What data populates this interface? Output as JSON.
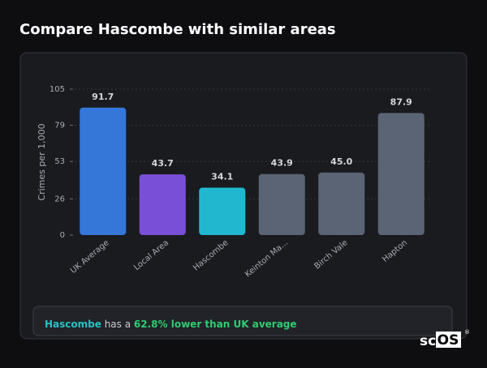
{
  "title": "Compare Hascombe with similar areas",
  "chart_data": {
    "type": "bar",
    "categories": [
      "UK Average",
      "Local Area",
      "Hascombe",
      "Keinton Ma...",
      "Birch Vale",
      "Hapton"
    ],
    "values": [
      91.7,
      43.7,
      34.1,
      43.9,
      45.0,
      87.9
    ],
    "value_labels": [
      "91.7",
      "43.7",
      "34.1",
      "43.9",
      "45.0",
      "87.9"
    ],
    "colors": [
      "#3577d9",
      "#7a4fd8",
      "#21b8cf",
      "#5a6475",
      "#5a6475",
      "#5a6475"
    ],
    "y_label": "Crimes per 1,000",
    "ylim": [
      0,
      105
    ],
    "yticks": [
      0,
      26,
      53,
      79,
      105
    ],
    "grid": true
  },
  "summary": {
    "highlight": "Hascombe",
    "text": "has a",
    "emphasis": "62.8% lower than UK average"
  },
  "logo": {
    "prefix": "sc",
    "box": "OS",
    "symbol": "®"
  }
}
